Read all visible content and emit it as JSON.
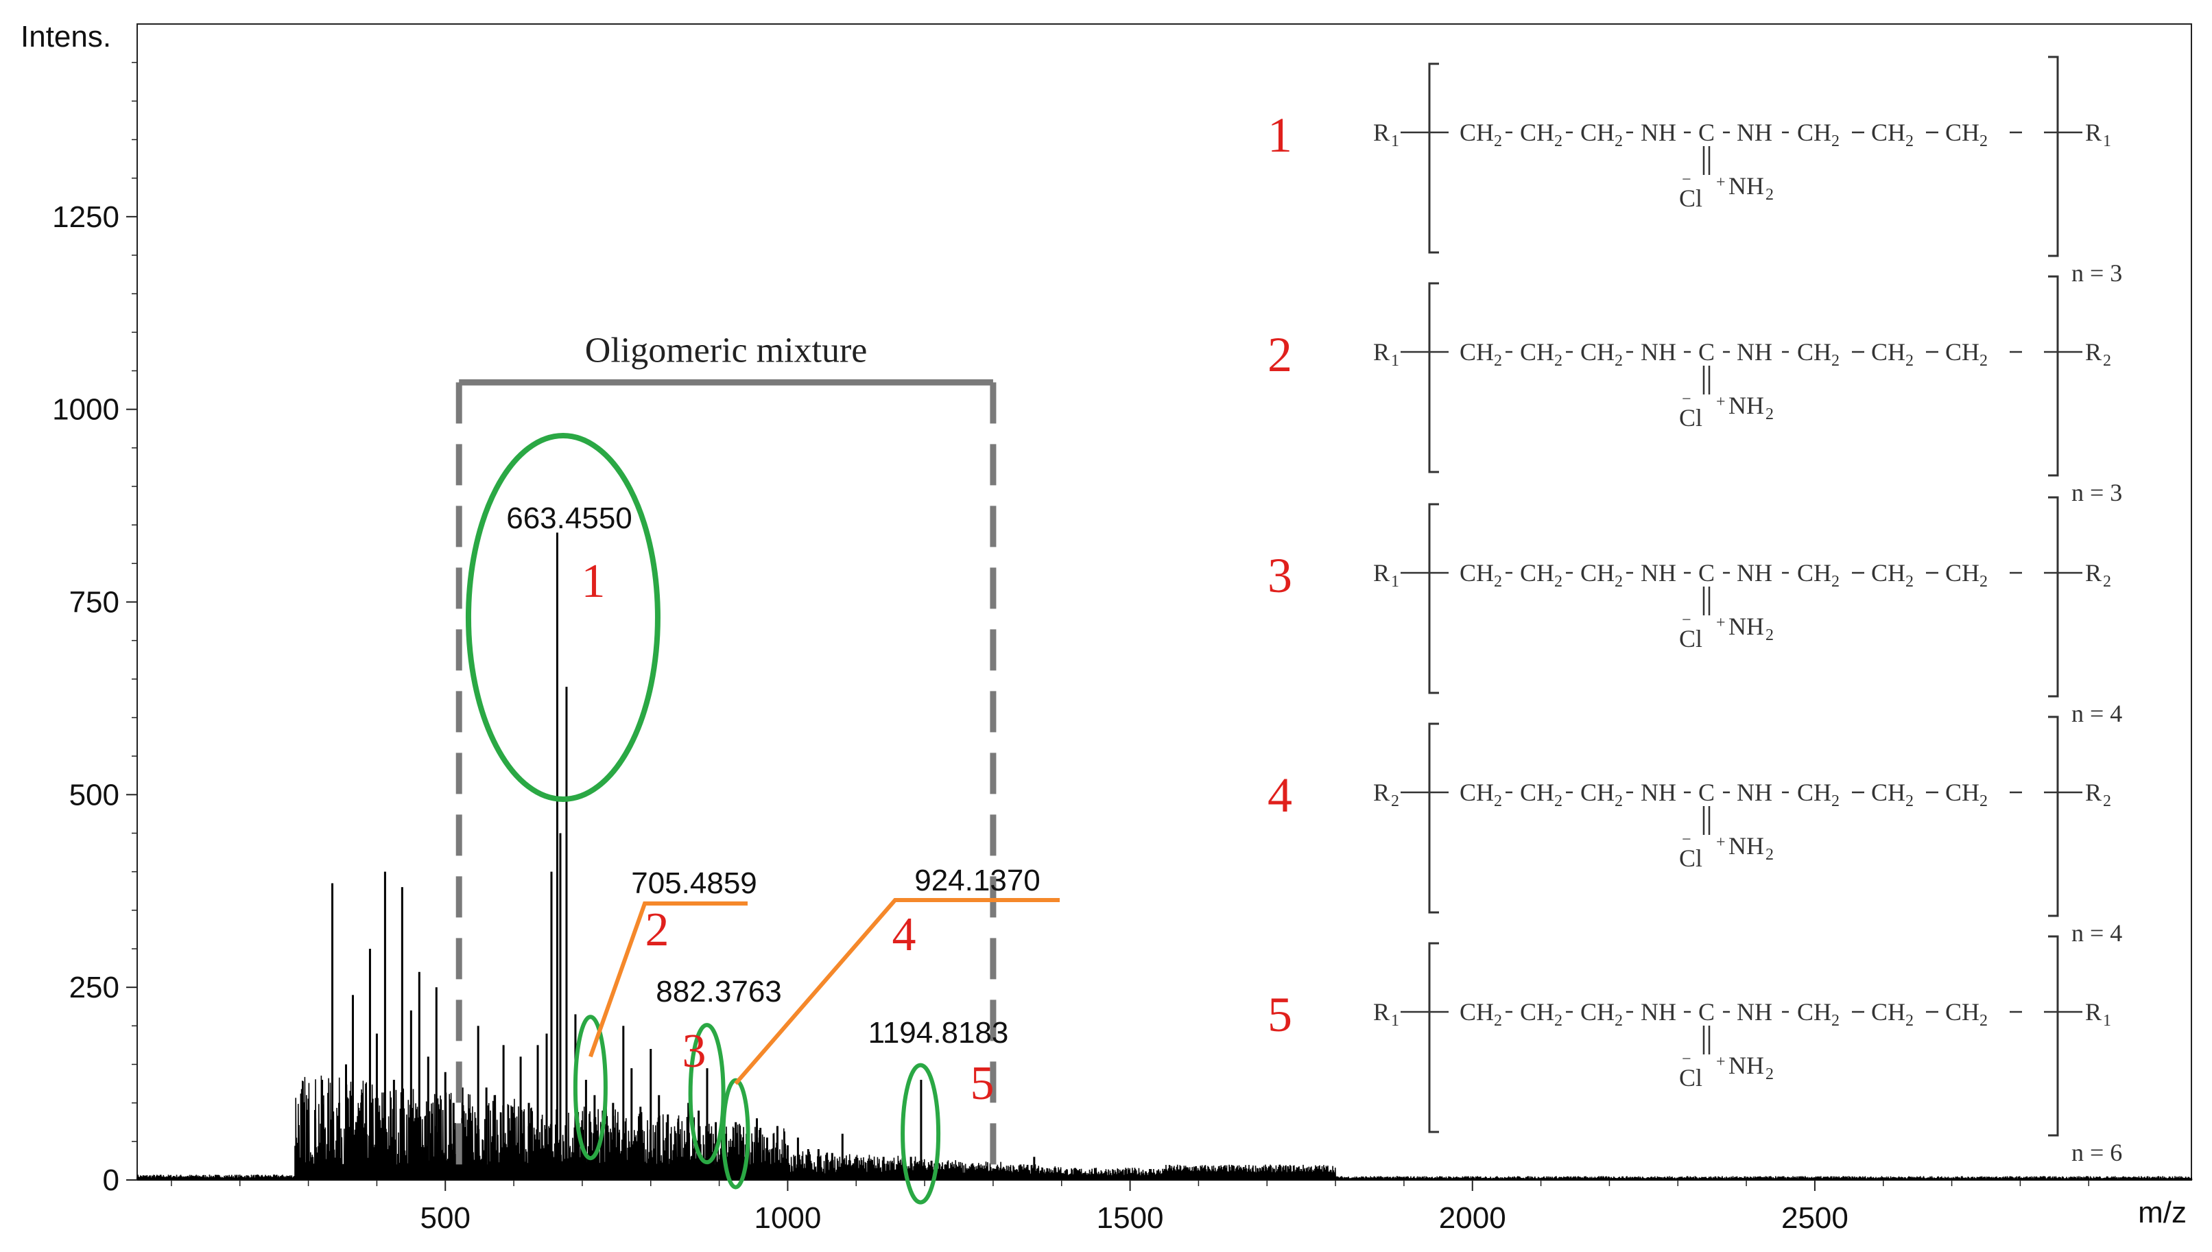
{
  "chart_data": {
    "type": "line",
    "title": "",
    "xlabel": "m/z",
    "ylabel": "Intens.",
    "xlim": [
      50,
      3050
    ],
    "ylim": [
      0,
      1500
    ],
    "x_ticks": [
      500,
      1000,
      1500,
      2000,
      2500
    ],
    "x_tick_labels": [
      "500",
      "1000",
      "1500",
      "2000",
      "2500"
    ],
    "y_ticks": [
      0,
      250,
      500,
      750,
      1000,
      1250
    ],
    "y_tick_labels": [
      "0",
      "250",
      "500",
      "750",
      "1000",
      "1250"
    ],
    "series": [
      {
        "name": "spectrum",
        "peaks": [
          {
            "x": 290,
            "y": 35
          },
          {
            "x": 300,
            "y": 60
          },
          {
            "x": 310,
            "y": 80
          },
          {
            "x": 320,
            "y": 130
          },
          {
            "x": 335,
            "y": 385
          },
          {
            "x": 345,
            "y": 100
          },
          {
            "x": 355,
            "y": 150
          },
          {
            "x": 365,
            "y": 240
          },
          {
            "x": 378,
            "y": 110
          },
          {
            "x": 390,
            "y": 300
          },
          {
            "x": 400,
            "y": 190
          },
          {
            "x": 412,
            "y": 400
          },
          {
            "x": 425,
            "y": 130
          },
          {
            "x": 437,
            "y": 380
          },
          {
            "x": 450,
            "y": 220
          },
          {
            "x": 462,
            "y": 270
          },
          {
            "x": 475,
            "y": 160
          },
          {
            "x": 487,
            "y": 250
          },
          {
            "x": 500,
            "y": 140
          },
          {
            "x": 512,
            "y": 100
          },
          {
            "x": 525,
            "y": 120
          },
          {
            "x": 535,
            "y": 90
          },
          {
            "x": 548,
            "y": 200
          },
          {
            "x": 560,
            "y": 120
          },
          {
            "x": 572,
            "y": 110
          },
          {
            "x": 585,
            "y": 175
          },
          {
            "x": 598,
            "y": 95
          },
          {
            "x": 610,
            "y": 160
          },
          {
            "x": 622,
            "y": 100
          },
          {
            "x": 635,
            "y": 175
          },
          {
            "x": 648,
            "y": 190
          },
          {
            "x": 655,
            "y": 400
          },
          {
            "x": 663.455,
            "y": 840
          },
          {
            "x": 668,
            "y": 450
          },
          {
            "x": 677,
            "y": 640
          },
          {
            "x": 690,
            "y": 215
          },
          {
            "x": 705.4859,
            "y": 130
          },
          {
            "x": 718,
            "y": 110
          },
          {
            "x": 730,
            "y": 90
          },
          {
            "x": 745,
            "y": 100
          },
          {
            "x": 760,
            "y": 200
          },
          {
            "x": 772,
            "y": 145
          },
          {
            "x": 785,
            "y": 95
          },
          {
            "x": 800,
            "y": 170
          },
          {
            "x": 812,
            "y": 110
          },
          {
            "x": 825,
            "y": 85
          },
          {
            "x": 840,
            "y": 75
          },
          {
            "x": 855,
            "y": 100
          },
          {
            "x": 870,
            "y": 90
          },
          {
            "x": 882.3763,
            "y": 145
          },
          {
            "x": 895,
            "y": 75
          },
          {
            "x": 910,
            "y": 60
          },
          {
            "x": 924.137,
            "y": 75
          },
          {
            "x": 940,
            "y": 60
          },
          {
            "x": 955,
            "y": 80
          },
          {
            "x": 970,
            "y": 55
          },
          {
            "x": 985,
            "y": 70
          },
          {
            "x": 1000,
            "y": 45
          },
          {
            "x": 1015,
            "y": 55
          },
          {
            "x": 1030,
            "y": 40
          },
          {
            "x": 1045,
            "y": 40
          },
          {
            "x": 1065,
            "y": 35
          },
          {
            "x": 1080,
            "y": 60
          },
          {
            "x": 1100,
            "y": 30
          },
          {
            "x": 1120,
            "y": 25
          },
          {
            "x": 1140,
            "y": 30
          },
          {
            "x": 1160,
            "y": 20
          },
          {
            "x": 1180,
            "y": 30
          },
          {
            "x": 1194.8183,
            "y": 130
          },
          {
            "x": 1210,
            "y": 25
          },
          {
            "x": 1230,
            "y": 20
          },
          {
            "x": 1250,
            "y": 15
          },
          {
            "x": 1280,
            "y": 15
          },
          {
            "x": 1300,
            "y": 15
          },
          {
            "x": 1340,
            "y": 20
          },
          {
            "x": 1360,
            "y": 30
          }
        ]
      }
    ],
    "annotations": {
      "bracket_label": "Oligomeric mixture",
      "bracket_range": [
        520,
        1300
      ],
      "bracket_y": 1035,
      "ellipse_1": {
        "cx": 672,
        "cy": 730,
        "rx": 138,
        "ry": 265
      },
      "peaks": [
        {
          "id": "1",
          "mz_label": "663.4550",
          "mz": 663.455
        },
        {
          "id": "2",
          "mz_label": "705.4859",
          "mz": 705.4859
        },
        {
          "id": "3",
          "mz_label": "882.3763",
          "mz": 882.3763
        },
        {
          "id": "4",
          "mz_label": "924.1370",
          "mz": 924.137
        },
        {
          "id": "5",
          "mz_label": "1194.8183",
          "mz": 1194.8183
        }
      ]
    },
    "structures": [
      {
        "number": "1",
        "left_end": "R",
        "left_sub": "1",
        "right_end": "R",
        "right_sub": "1",
        "n_label": "n = 3"
      },
      {
        "number": "2",
        "left_end": "R",
        "left_sub": "1",
        "right_end": "R",
        "right_sub": "2",
        "n_label": "n = 3"
      },
      {
        "number": "3",
        "left_end": "R",
        "left_sub": "1",
        "right_end": "R",
        "right_sub": "2",
        "n_label": "n = 4"
      },
      {
        "number": "4",
        "left_end": "R",
        "left_sub": "2",
        "right_end": "R",
        "right_sub": "2",
        "n_label": "n = 4"
      },
      {
        "number": "5",
        "left_end": "R",
        "left_sub": "1",
        "right_end": "R",
        "right_sub": "1",
        "n_label": "n = 6"
      }
    ],
    "structure_chain": {
      "ch2": "CH",
      "two": "2",
      "nh": "NH",
      "c": "C",
      "nh2": "NH",
      "cl": "Cl",
      "cl_charge": "−",
      "plus": "+"
    }
  },
  "colors": {
    "number_red": "#e0201c",
    "ellipse_green": "#2aa844",
    "callout_orange": "#f5882a",
    "bracket_gray": "#7a7a7a",
    "spectrum": "#000000"
  }
}
